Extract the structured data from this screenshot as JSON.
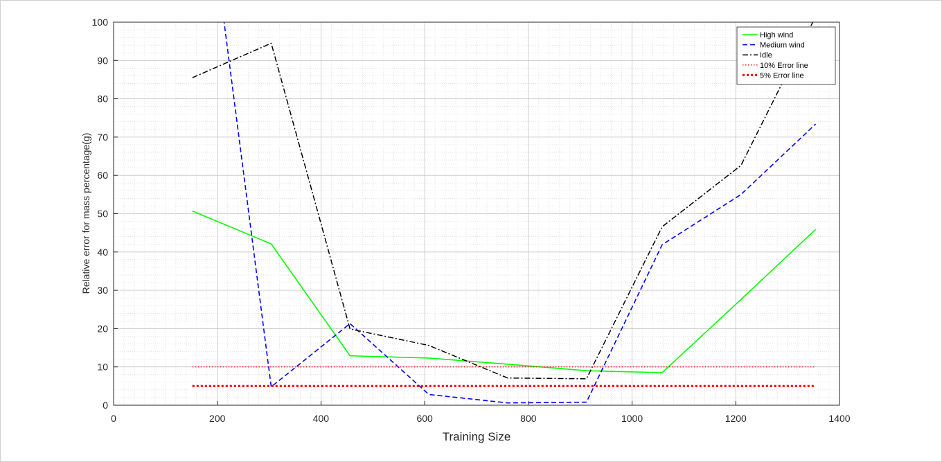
{
  "chart_data": {
    "type": "line",
    "title": "",
    "xlabel": "Training Size",
    "ylabel": "Relative error for mass percentage(g)",
    "xlim": [
      0,
      1400
    ],
    "ylim": [
      0,
      100
    ],
    "xticks": [
      0,
      200,
      400,
      600,
      800,
      1000,
      1200,
      1400
    ],
    "yticks": [
      0,
      10,
      20,
      30,
      40,
      50,
      60,
      70,
      80,
      90,
      100
    ],
    "grid": true,
    "legend_position": "top-right",
    "series": [
      {
        "name": "High wind",
        "color": "#00ff00",
        "style": "solid",
        "x": [
          152,
          304,
          456,
          608,
          760,
          912,
          1058,
          1210,
          1354
        ],
        "y": [
          50.7,
          42.1,
          12.9,
          12.3,
          10.7,
          9.0,
          8.5,
          27.6,
          45.9
        ]
      },
      {
        "name": "Medium wind",
        "color": "#0000ff",
        "style": "dashed",
        "x": [
          152,
          304,
          456,
          608,
          760,
          912,
          1058,
          1210,
          1354
        ],
        "y": [
          164,
          4.8,
          21.3,
          2.8,
          0.6,
          0.8,
          41.9,
          55.0,
          73.4
        ]
      },
      {
        "name": "Idle",
        "color": "#000000",
        "style": "dashdot",
        "x": [
          152,
          304,
          456,
          608,
          760,
          912,
          1058,
          1210,
          1354
        ],
        "y": [
          85.5,
          94.5,
          19.9,
          15.6,
          7.1,
          6.9,
          46.6,
          62.6,
          101.5
        ]
      },
      {
        "name": "10% Error line",
        "color": "#ff0000",
        "style": "dotted-thin",
        "x": [
          152,
          1354
        ],
        "y": [
          10,
          10
        ]
      },
      {
        "name": "5% Error line",
        "color": "#ff0000",
        "style": "dotted-thick",
        "x": [
          152,
          1354
        ],
        "y": [
          5,
          5
        ]
      }
    ]
  }
}
